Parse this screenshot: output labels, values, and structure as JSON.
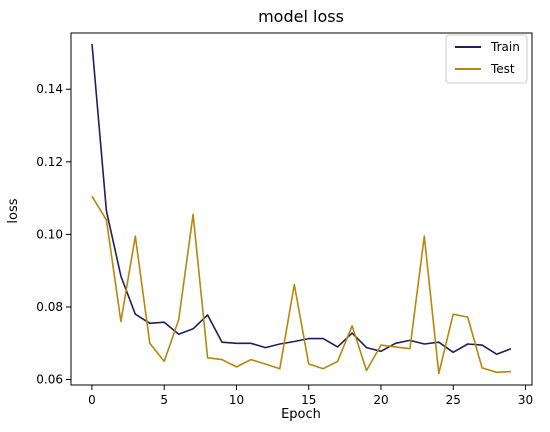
{
  "chart_data": {
    "type": "line",
    "title": "model loss",
    "xlabel": "Epoch",
    "ylabel": "loss",
    "x": [
      0,
      1,
      2,
      3,
      4,
      5,
      6,
      7,
      8,
      9,
      10,
      11,
      12,
      13,
      14,
      15,
      16,
      17,
      18,
      19,
      20,
      21,
      22,
      23,
      24,
      25,
      26,
      27,
      28,
      29
    ],
    "xlim": [
      -1.45,
      30.45
    ],
    "ylim": [
      0.0585,
      0.1555
    ],
    "x_ticks": [
      0,
      5,
      10,
      15,
      20,
      25,
      30
    ],
    "y_ticks": [
      0.06,
      0.08,
      0.1,
      0.12,
      0.14
    ],
    "x_tick_labels": [
      "0",
      "5",
      "10",
      "15",
      "20",
      "25",
      "30"
    ],
    "y_tick_labels": [
      "0.06",
      "0.08",
      "0.10",
      "0.12",
      "0.14"
    ],
    "grid": false,
    "legend_position": "top-right",
    "series": [
      {
        "name": "Train",
        "color": "#1f1f5c",
        "values": [
          0.1525,
          0.1065,
          0.0885,
          0.078,
          0.0755,
          0.0758,
          0.0725,
          0.074,
          0.0778,
          0.0703,
          0.07,
          0.07,
          0.0688,
          0.0698,
          0.0705,
          0.0713,
          0.0713,
          0.069,
          0.0728,
          0.0688,
          0.0678,
          0.07,
          0.0708,
          0.0698,
          0.0703,
          0.0675,
          0.0698,
          0.0695,
          0.067,
          0.0685
        ]
      },
      {
        "name": "Test",
        "color": "#b8860b",
        "values": [
          0.1105,
          0.104,
          0.076,
          0.0995,
          0.07,
          0.065,
          0.0765,
          0.1055,
          0.066,
          0.0655,
          0.0635,
          0.0655,
          0.0643,
          0.063,
          0.0862,
          0.0643,
          0.063,
          0.065,
          0.0748,
          0.0625,
          0.0695,
          0.069,
          0.0685,
          0.0995,
          0.0617,
          0.078,
          0.0772,
          0.0632,
          0.062,
          0.0622
        ]
      }
    ]
  }
}
